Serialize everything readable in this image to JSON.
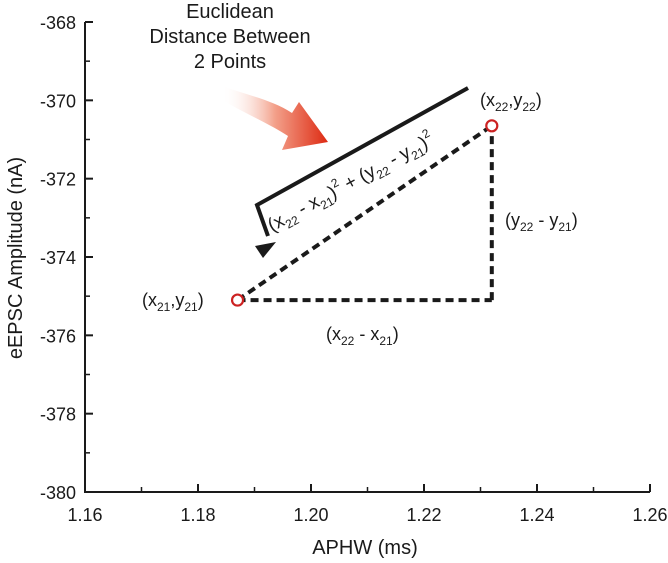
{
  "chart_data": {
    "type": "scatter",
    "xlabel": "APHW (ms)",
    "ylabel": "eEPSC Amplitude (nA)",
    "xlim": [
      1.16,
      1.26
    ],
    "ylim": [
      -380,
      -368
    ],
    "xticks": [
      "1.16",
      "1.18",
      "1.20",
      "1.22",
      "1.24",
      "1.26"
    ],
    "yticks": [
      "-368",
      "-370",
      "-372",
      "-374",
      "-376",
      "-378",
      "-380"
    ],
    "xtick_values": [
      1.16,
      1.18,
      1.2,
      1.22,
      1.24,
      1.26
    ],
    "ytick_values": [
      -368,
      -370,
      -372,
      -374,
      -376,
      -378,
      -380
    ],
    "points": [
      {
        "x": 1.187,
        "y": -375.1,
        "label": "(x21,y21)"
      },
      {
        "x": 1.232,
        "y": -370.65,
        "label": "(x22,y22)"
      }
    ],
    "annotations": {
      "title_lines": [
        "Euclidean",
        "Distance Between",
        "2 Points"
      ],
      "dx_label": "(x22 - x21)",
      "dy_label": "(y22 - y21)",
      "formula": "(x22 - x21)2 + (y22 - y21)2"
    },
    "grid": false,
    "legend": "none",
    "colors": {
      "marker": "#cc2222",
      "arrow": "#e0301e",
      "axes": "#1a1a1a"
    }
  }
}
